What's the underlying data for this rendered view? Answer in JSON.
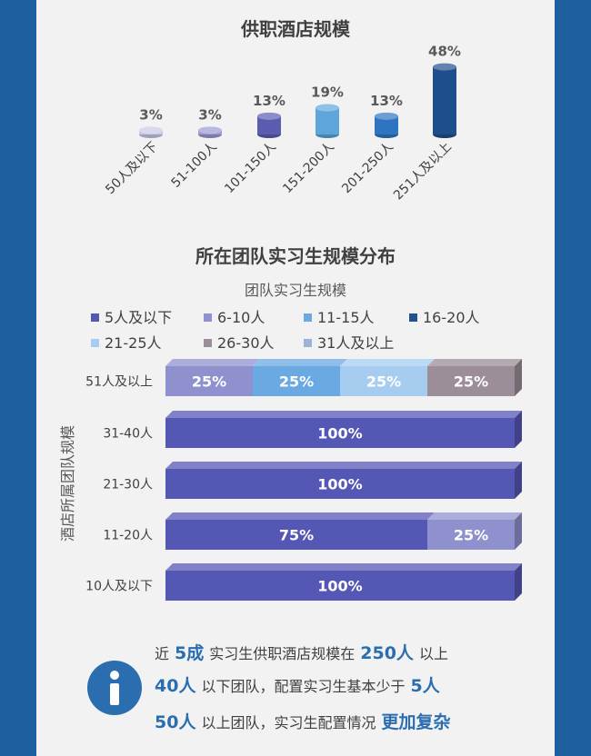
{
  "chart_data": [
    {
      "type": "bar",
      "title": "供职酒店规模",
      "categories": [
        "50人及以下",
        "51-100人",
        "101-150人",
        "151-200人",
        "201-250人",
        "251人及以上"
      ],
      "values": [
        3,
        3,
        13,
        19,
        13,
        48
      ],
      "value_labels": [
        "3%",
        "3%",
        "13%",
        "19%",
        "13%",
        "48%"
      ],
      "colors": [
        "#c9c9e6",
        "#9b9bd2",
        "#5b5bb0",
        "#5ea6d9",
        "#2f74c0",
        "#1f4e8c"
      ],
      "unit": "%"
    },
    {
      "type": "bar",
      "orientation": "horizontal",
      "stacked": true,
      "title": "所在团队实习生规模分布",
      "subtitle": "团队实习生规模",
      "ylabel": "酒店所属团队规模",
      "categories": [
        "51人及以上",
        "31-40人",
        "21-30人",
        "11-20人",
        "10人及以下"
      ],
      "series": [
        {
          "name": "5人及以下",
          "color": "#5557b5",
          "values": [
            0,
            100,
            100,
            75,
            100
          ]
        },
        {
          "name": "6-10人",
          "color": "#8f91cf",
          "values": [
            25,
            0,
            0,
            25,
            0
          ]
        },
        {
          "name": "11-15人",
          "color": "#6aa9e2",
          "values": [
            25,
            0,
            0,
            0,
            0
          ]
        },
        {
          "name": "16-20人",
          "color": "#20528f",
          "values": [
            0,
            0,
            0,
            0,
            0
          ]
        },
        {
          "name": "21-25人",
          "color": "#a6cdef",
          "values": [
            25,
            0,
            0,
            0,
            0
          ]
        },
        {
          "name": "26-30人",
          "color": "#9b8e98",
          "values": [
            25,
            0,
            0,
            0,
            0
          ]
        },
        {
          "name": "31人及以上",
          "color": "#9db3d6",
          "values": [
            0,
            0,
            0,
            0,
            0
          ]
        }
      ],
      "legend_position": "top",
      "xlim": [
        0,
        100
      ]
    }
  ],
  "info": {
    "line1": {
      "a": "近",
      "b": "5成",
      "c": "实习生供职酒店规模在",
      "d": "250人",
      "e": "以上"
    },
    "line2": {
      "a": "40人",
      "b": "以下团队，配置实习生基本少于",
      "c": "5人"
    },
    "line3": {
      "a": "50人",
      "b": "以上团队，实习生配置情况",
      "c": "更加复杂"
    }
  },
  "colors": {
    "background": "#1e5fa0",
    "panel": "#f2f2f2",
    "accent": "#2a6eb0"
  },
  "icons": {
    "info": "info-icon"
  }
}
